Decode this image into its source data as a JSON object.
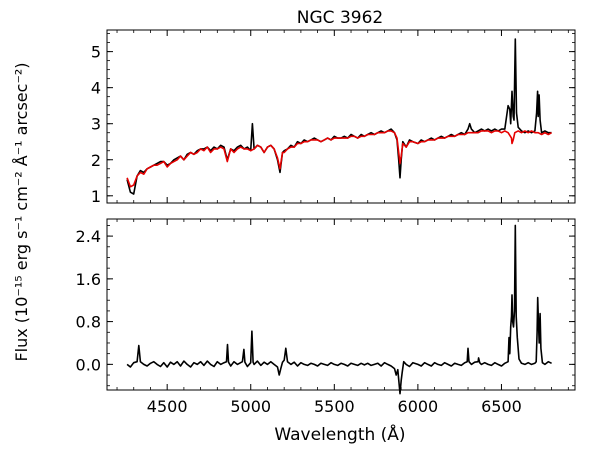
{
  "chart_data": {
    "type": "line",
    "title": "NGC 3962",
    "xlabel": "Wavelength (Å)",
    "ylabel": "Flux (10⁻¹⁵ erg s⁻¹ cm⁻² Å⁻¹ arcsec⁻²)",
    "xlim": [
      4140,
      6940
    ],
    "xticks": [
      4500,
      5000,
      5500,
      6000,
      6500
    ],
    "panels": [
      {
        "name": "top",
        "ylim": [
          0.8,
          5.6
        ],
        "yticks": [
          1,
          2,
          3,
          4,
          5
        ],
        "series": [
          {
            "color": "#000000",
            "x": [
              4260,
              4280,
              4300,
              4320,
              4340,
              4360,
              4380,
              4400,
              4420,
              4440,
              4460,
              4480,
              4500,
              4520,
              4540,
              4560,
              4580,
              4600,
              4620,
              4640,
              4660,
              4680,
              4700,
              4720,
              4740,
              4760,
              4780,
              4800,
              4820,
              4840,
              4860,
              4880,
              4900,
              4920,
              4940,
              4960,
              4980,
              5000,
              5010,
              5020,
              5040,
              5060,
              5080,
              5100,
              5120,
              5140,
              5160,
              5175,
              5190,
              5200,
              5220,
              5240,
              5260,
              5280,
              5300,
              5320,
              5340,
              5360,
              5380,
              5400,
              5420,
              5440,
              5460,
              5480,
              5500,
              5520,
              5540,
              5560,
              5580,
              5600,
              5620,
              5640,
              5660,
              5680,
              5700,
              5720,
              5740,
              5760,
              5780,
              5800,
              5820,
              5840,
              5860,
              5875,
              5885,
              5893,
              5900,
              5910,
              5930,
              5950,
              5970,
              6000,
              6020,
              6040,
              6060,
              6080,
              6100,
              6120,
              6140,
              6160,
              6180,
              6200,
              6220,
              6240,
              6260,
              6280,
              6300,
              6310,
              6320,
              6340,
              6360,
              6380,
              6400,
              6420,
              6440,
              6460,
              6480,
              6500,
              6520,
              6540,
              6550,
              6555,
              6563,
              6570,
              6575,
              6583,
              6590,
              6600,
              6620,
              6640,
              6660,
              6680,
              6700,
              6710,
              6716,
              6720,
              6725,
              6731,
              6740,
              6760,
              6780,
              6800
            ],
            "y": [
              1.45,
              1.1,
              1.05,
              1.55,
              1.7,
              1.65,
              1.75,
              1.8,
              1.85,
              1.9,
              1.95,
              1.95,
              1.85,
              1.9,
              2.0,
              2.05,
              2.1,
              2.0,
              2.15,
              2.2,
              2.15,
              2.25,
              2.3,
              2.3,
              2.35,
              2.25,
              2.35,
              2.3,
              2.4,
              2.35,
              2.0,
              2.3,
              2.25,
              2.35,
              2.4,
              2.3,
              2.35,
              2.25,
              3.0,
              2.3,
              2.4,
              2.35,
              2.2,
              2.35,
              2.4,
              2.3,
              2.0,
              1.65,
              2.2,
              2.25,
              2.3,
              2.4,
              2.35,
              2.5,
              2.45,
              2.55,
              2.5,
              2.55,
              2.6,
              2.55,
              2.5,
              2.55,
              2.6,
              2.55,
              2.65,
              2.6,
              2.6,
              2.65,
              2.6,
              2.7,
              2.65,
              2.6,
              2.7,
              2.65,
              2.7,
              2.75,
              2.7,
              2.75,
              2.8,
              2.75,
              2.8,
              2.85,
              2.75,
              2.55,
              2.0,
              1.5,
              2.0,
              2.5,
              2.35,
              2.55,
              2.5,
              2.45,
              2.55,
              2.5,
              2.55,
              2.6,
              2.55,
              2.6,
              2.65,
              2.6,
              2.65,
              2.7,
              2.65,
              2.7,
              2.75,
              2.7,
              2.85,
              3.0,
              2.85,
              2.75,
              2.8,
              2.85,
              2.8,
              2.85,
              2.8,
              2.85,
              2.8,
              2.85,
              2.85,
              3.5,
              3.4,
              3.0,
              3.9,
              3.2,
              3.1,
              5.35,
              3.3,
              2.9,
              2.8,
              2.75,
              2.8,
              2.75,
              2.8,
              3.3,
              3.9,
              3.2,
              3.8,
              3.1,
              2.75,
              2.8,
              2.75,
              2.75
            ]
          },
          {
            "color": "#e60000",
            "x": [
              4260,
              4280,
              4300,
              4320,
              4340,
              4360,
              4380,
              4400,
              4420,
              4440,
              4460,
              4480,
              4500,
              4520,
              4540,
              4560,
              4580,
              4600,
              4620,
              4640,
              4660,
              4680,
              4700,
              4720,
              4740,
              4760,
              4780,
              4800,
              4820,
              4840,
              4860,
              4880,
              4900,
              4920,
              4940,
              4960,
              4980,
              5000,
              5020,
              5040,
              5060,
              5080,
              5100,
              5120,
              5140,
              5160,
              5175,
              5190,
              5200,
              5220,
              5240,
              5260,
              5280,
              5300,
              5320,
              5340,
              5360,
              5380,
              5400,
              5420,
              5440,
              5460,
              5480,
              5500,
              5520,
              5540,
              5560,
              5580,
              5600,
              5620,
              5640,
              5660,
              5680,
              5700,
              5720,
              5740,
              5760,
              5780,
              5800,
              5820,
              5840,
              5860,
              5875,
              5885,
              5893,
              5900,
              5910,
              5930,
              5950,
              5970,
              6000,
              6020,
              6040,
              6060,
              6080,
              6100,
              6120,
              6140,
              6160,
              6180,
              6200,
              6220,
              6240,
              6260,
              6280,
              6300,
              6320,
              6340,
              6360,
              6380,
              6400,
              6420,
              6440,
              6460,
              6480,
              6500,
              6520,
              6540,
              6560,
              6563,
              6570,
              6580,
              6600,
              6620,
              6640,
              6660,
              6680,
              6700,
              6720,
              6740,
              6760,
              6780,
              6800
            ],
            "y": [
              1.5,
              1.25,
              1.3,
              1.55,
              1.65,
              1.6,
              1.75,
              1.8,
              1.85,
              1.85,
              1.9,
              1.95,
              1.8,
              1.9,
              1.95,
              2.0,
              2.1,
              2.0,
              2.1,
              2.2,
              2.15,
              2.2,
              2.3,
              2.25,
              2.35,
              2.2,
              2.3,
              2.3,
              2.35,
              2.3,
              1.95,
              2.3,
              2.2,
              2.3,
              2.35,
              2.3,
              2.3,
              2.25,
              2.3,
              2.4,
              2.35,
              2.2,
              2.35,
              2.4,
              2.3,
              2.05,
              1.75,
              2.2,
              2.2,
              2.3,
              2.35,
              2.35,
              2.45,
              2.45,
              2.5,
              2.5,
              2.55,
              2.55,
              2.55,
              2.5,
              2.55,
              2.6,
              2.55,
              2.6,
              2.6,
              2.6,
              2.6,
              2.6,
              2.65,
              2.65,
              2.6,
              2.65,
              2.65,
              2.7,
              2.7,
              2.7,
              2.75,
              2.75,
              2.75,
              2.8,
              2.8,
              2.75,
              2.6,
              2.2,
              1.9,
              2.1,
              2.45,
              2.35,
              2.5,
              2.5,
              2.45,
              2.5,
              2.5,
              2.55,
              2.55,
              2.55,
              2.6,
              2.6,
              2.6,
              2.65,
              2.65,
              2.65,
              2.7,
              2.7,
              2.7,
              2.75,
              2.75,
              2.75,
              2.75,
              2.8,
              2.8,
              2.8,
              2.75,
              2.8,
              2.8,
              2.75,
              2.8,
              2.75,
              2.6,
              2.45,
              2.55,
              2.75,
              2.8,
              2.75,
              2.8,
              2.75,
              2.8,
              2.75,
              2.75,
              2.7,
              2.75,
              2.7,
              2.75
            ]
          }
        ]
      },
      {
        "name": "bottom",
        "ylim": [
          -0.48,
          2.72
        ],
        "yticks": [
          0.0,
          0.8,
          1.6,
          2.4
        ],
        "yticklabels": [
          "0.0",
          "0.8",
          "1.6",
          "2.4"
        ],
        "series": [
          {
            "color": "#000000",
            "x": [
              4260,
              4280,
              4300,
              4320,
              4330,
              4340,
              4360,
              4380,
              4400,
              4420,
              4440,
              4460,
              4480,
              4500,
              4520,
              4540,
              4560,
              4580,
              4600,
              4620,
              4640,
              4660,
              4680,
              4700,
              4720,
              4740,
              4760,
              4780,
              4800,
              4820,
              4840,
              4855,
              4861,
              4867,
              4880,
              4900,
              4920,
              4950,
              4959,
              4965,
              4980,
              5000,
              5007,
              5014,
              5020,
              5040,
              5060,
              5080,
              5100,
              5120,
              5140,
              5160,
              5170,
              5180,
              5190,
              5200,
              5210,
              5220,
              5240,
              5260,
              5280,
              5300,
              5320,
              5340,
              5360,
              5380,
              5400,
              5420,
              5440,
              5460,
              5480,
              5500,
              5520,
              5540,
              5560,
              5580,
              5600,
              5620,
              5640,
              5660,
              5680,
              5700,
              5720,
              5740,
              5760,
              5780,
              5800,
              5820,
              5840,
              5860,
              5870,
              5880,
              5893,
              5900,
              5906,
              5915,
              5930,
              5950,
              5970,
              6000,
              6020,
              6040,
              6060,
              6080,
              6100,
              6120,
              6140,
              6160,
              6180,
              6200,
              6220,
              6240,
              6260,
              6280,
              6295,
              6300,
              6306,
              6320,
              6340,
              6360,
              6363,
              6370,
              6380,
              6400,
              6420,
              6440,
              6460,
              6480,
              6500,
              6520,
              6540,
              6545,
              6550,
              6555,
              6560,
              6563,
              6567,
              6572,
              6578,
              6583,
              6588,
              6595,
              6605,
              6620,
              6640,
              6660,
              6680,
              6700,
              6708,
              6713,
              6717,
              6722,
              6726,
              6731,
              6736,
              6745,
              6760,
              6780,
              6800
            ],
            "y": [
              0.0,
              -0.05,
              0.03,
              0.05,
              0.35,
              0.05,
              0.0,
              -0.03,
              0.02,
              0.05,
              0.0,
              -0.04,
              0.03,
              -0.05,
              0.04,
              0.0,
              0.05,
              -0.03,
              0.06,
              0.0,
              -0.05,
              0.03,
              0.0,
              0.05,
              -0.02,
              0.06,
              0.0,
              -0.04,
              0.05,
              0.0,
              0.03,
              0.05,
              0.37,
              0.04,
              -0.03,
              0.05,
              0.0,
              0.05,
              0.28,
              0.04,
              -0.04,
              0.03,
              0.62,
              0.04,
              0.0,
              0.06,
              -0.02,
              0.04,
              0.0,
              0.05,
              0.0,
              -0.05,
              -0.2,
              -0.08,
              0.04,
              0.08,
              0.3,
              0.05,
              0.0,
              0.04,
              -0.03,
              0.03,
              0.0,
              -0.02,
              0.02,
              0.0,
              -0.03,
              0.02,
              0.0,
              -0.02,
              0.03,
              0.0,
              -0.02,
              0.02,
              0.0,
              -0.03,
              0.02,
              0.0,
              -0.02,
              0.02,
              -0.01,
              0.02,
              -0.02,
              0.0,
              0.02,
              -0.03,
              0.03,
              0.0,
              -0.03,
              -0.08,
              -0.2,
              -0.1,
              -0.55,
              -0.3,
              -0.15,
              0.05,
              0.0,
              -0.04,
              0.03,
              0.0,
              -0.03,
              0.03,
              0.0,
              -0.03,
              0.03,
              0.0,
              -0.02,
              0.03,
              0.0,
              -0.03,
              0.02,
              0.0,
              -0.02,
              0.03,
              0.05,
              0.3,
              0.05,
              0.0,
              0.04,
              0.05,
              0.12,
              0.03,
              0.0,
              0.03,
              0.0,
              -0.02,
              0.03,
              0.0,
              -0.03,
              0.02,
              0.05,
              0.5,
              0.2,
              0.7,
              0.9,
              1.3,
              0.8,
              0.7,
              1.0,
              2.6,
              0.9,
              0.5,
              0.1,
              0.02,
              0.0,
              0.03,
              0.0,
              0.02,
              0.05,
              0.6,
              1.25,
              0.7,
              0.4,
              0.95,
              0.3,
              0.03,
              0.0,
              0.05,
              0.02
            ]
          }
        ]
      }
    ]
  }
}
